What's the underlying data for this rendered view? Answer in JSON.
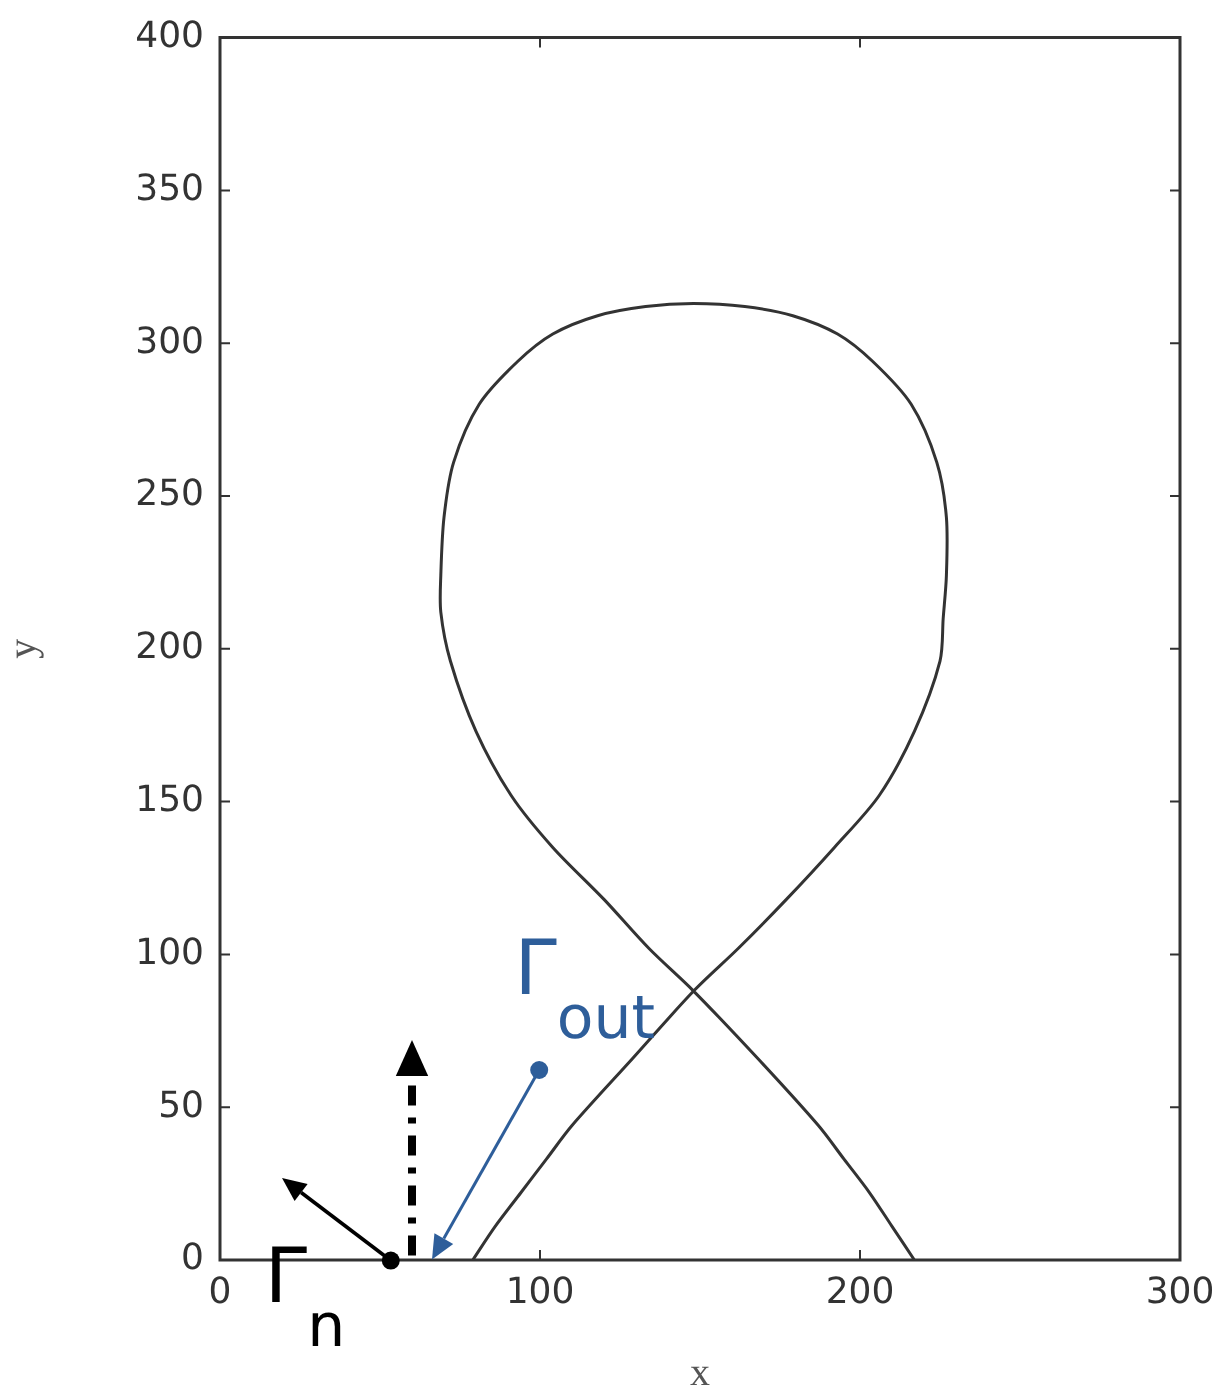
{
  "chart_data": {
    "type": "line",
    "xlabel": "x",
    "ylabel": "y",
    "xlim": [
      0,
      300
    ],
    "ylim": [
      0,
      400
    ],
    "xticks": [
      0,
      100,
      200,
      300
    ],
    "yticks": [
      0,
      50,
      100,
      150,
      200,
      250,
      300,
      350,
      400
    ],
    "marker": "none",
    "line_style": "solid",
    "series": [
      {
        "color": "#333333",
        "x": [
          217,
          210,
          203,
          195,
          187,
          168,
          148,
          134,
          120,
          104,
          91,
          80,
          72,
          69,
          69,
          70,
          73,
          81,
          93,
          104,
          118,
          133,
          148,
          164,
          179,
          193,
          204,
          216,
          224,
          227,
          227,
          226,
          225,
          217,
          206,
          192,
          177,
          162,
          148,
          129,
          110,
          102,
          94,
          86,
          79
        ],
        "values": [
          0,
          11,
          22,
          33,
          44,
          66,
          88,
          102,
          118,
          135,
          152,
          173,
          196,
          212,
          224,
          243,
          261,
          280,
          294,
          303,
          309,
          312,
          313,
          312,
          309,
          303,
          294,
          280,
          261,
          243,
          224,
          210,
          196,
          173,
          152,
          135,
          118,
          102,
          88,
          66,
          44,
          33,
          22,
          11,
          0
        ]
      }
    ],
    "annotations": [
      "Γ$_{out}$",
      "Γ$_{n}$"
    ]
  }
}
